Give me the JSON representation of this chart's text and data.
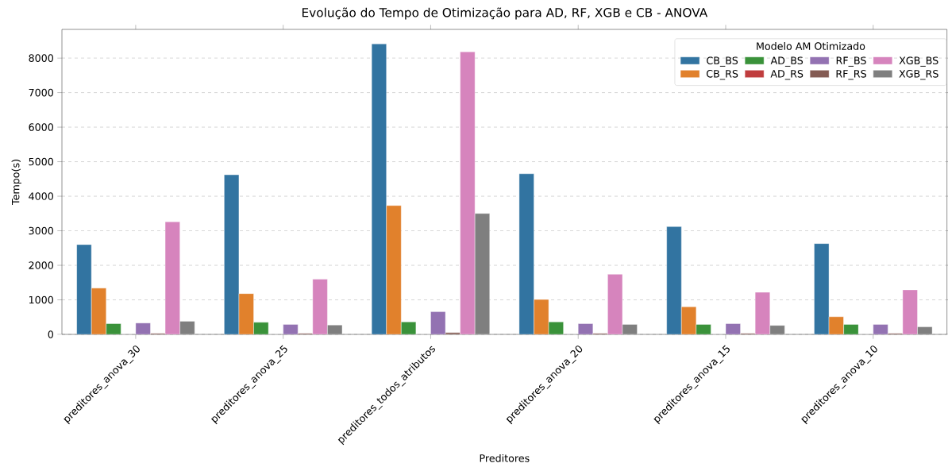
{
  "chart_data": {
    "type": "bar",
    "title": "Evolução do Tempo de Otimização para AD, RF, XGB e CB - ANOVA",
    "xlabel": "Preditores",
    "ylabel": "Tempo(s)",
    "legend_title": "Modelo AM Otimizado",
    "legend": "top right",
    "grid": "y",
    "ylim": [
      0,
      8830
    ],
    "yticks": [
      0,
      1000,
      2000,
      3000,
      4000,
      5000,
      6000,
      7000,
      8000
    ],
    "categories": [
      "preditores_anova_30",
      "preditores_anova_25",
      "preditores_todos_atributos",
      "preditores_anova_20",
      "preditores_anova_15",
      "preditores_anova_10"
    ],
    "series": [
      {
        "name": "CB_BS",
        "color": "#3274a1",
        "values": [
          2600,
          4620,
          8410,
          4650,
          3120,
          2630
        ]
      },
      {
        "name": "CB_RS",
        "color": "#e1812c",
        "values": [
          1340,
          1180,
          3730,
          1010,
          800,
          510
        ]
      },
      {
        "name": "AD_BS",
        "color": "#3a923a",
        "values": [
          310,
          350,
          360,
          360,
          290,
          290
        ]
      },
      {
        "name": "AD_RS",
        "color": "#c03d3e",
        "values": [
          0,
          0,
          0,
          0,
          0,
          0
        ]
      },
      {
        "name": "RF_BS",
        "color": "#9372b2",
        "values": [
          330,
          290,
          660,
          310,
          310,
          290
        ]
      },
      {
        "name": "RF_RS",
        "color": "#845b53",
        "values": [
          30,
          30,
          50,
          30,
          30,
          30
        ]
      },
      {
        "name": "XGB_BS",
        "color": "#d684bd",
        "values": [
          3260,
          1600,
          8180,
          1740,
          1220,
          1290
        ]
      },
      {
        "name": "XGB_RS",
        "color": "#7f7f7f",
        "values": [
          380,
          270,
          3500,
          290,
          260,
          220
        ]
      }
    ]
  }
}
